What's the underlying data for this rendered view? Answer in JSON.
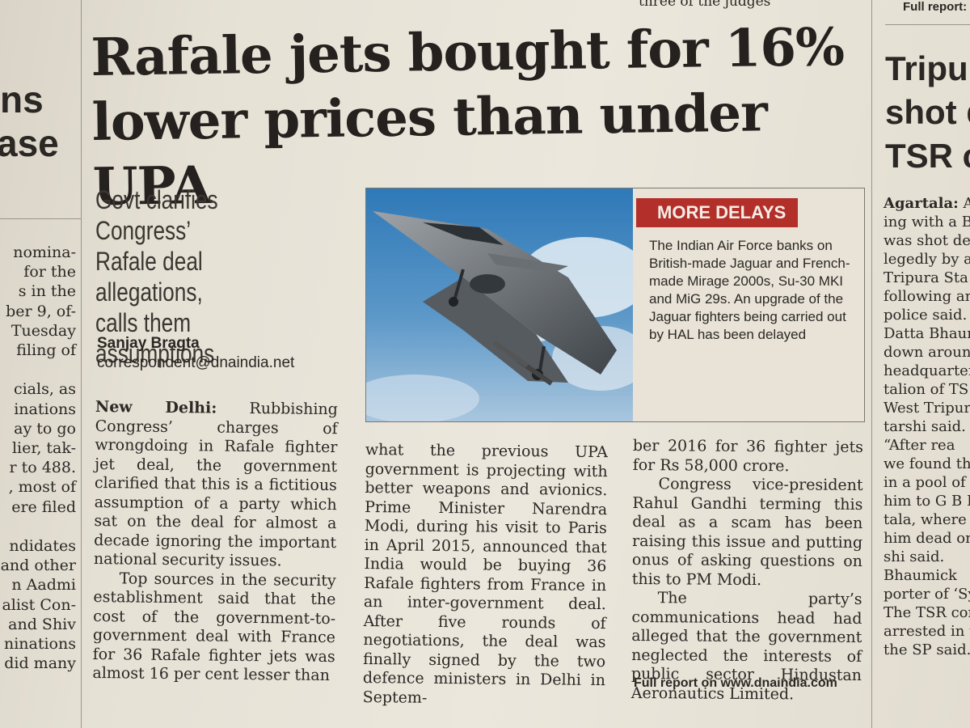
{
  "headline": {
    "line1": "Rafale jets bought for 16%",
    "line2": "lower prices than under UPA"
  },
  "deck": {
    "line1": "Govt clarifies Congress’",
    "line2": "Rafale deal allegations,",
    "line3": "calls them assumptions"
  },
  "byline": {
    "name": "Sanjay Bragta",
    "email": "correspondent@dnaindia.net"
  },
  "story": {
    "dateline": "New Delhi:",
    "p1": " Rubbishing Congress’ charges of wrongdoing in Rafale fighter jet deal, the government clarified that this is a fictitious assumption of a party which sat on the deal for almost a decade ignoring the important national security issues.",
    "p2": "Top sources in the security establishment said that the cost of the government-to-government deal with France for 36 Rafale fighter jets was almost 16 per cent lesser than",
    "p3": "what the previous UPA government is projecting with better weapons and avionics. Prime Minister Narendra Modi, during his visit to Paris in April 2015, announced that India would be buying 36 Rafale fighters from France in an inter-government deal. After five rounds of negotiations, the deal was finally signed by the two defence ministers in Delhi in Septem-",
    "p4": "ber 2016 for 36 fighter jets for Rs 58,000 crore.",
    "p5": "Congress vice-president Rahul Gandhi terming this deal as a scam has been raising this issue and putting onus of asking questions on this to PM Modi.",
    "p6": "The party’s communications head had alleged that the government neglected the interests of public sector Hindustan Aeronautics Limited.",
    "full_report": "Full report on www.dnaindia.com"
  },
  "sidebar": {
    "title": "MORE DELAYS",
    "text": "The Indian Air Force banks on British-made Jaguar and French-made Mirage 2000s, Su-30 MKI and MiG 29s. An upgrade of the Jaguar fighters being carried out by HAL has been delayed"
  },
  "left_fragment": {
    "head1": "ns",
    "head2": "ase",
    "lines": [
      "nomina-",
      "for the",
      "s in the",
      "ber 9, of-",
      "Tuesday",
      "filing of",
      "",
      "cials, as",
      "inations",
      "ay to go",
      "lier, tak-",
      "r to 488.",
      ", most of",
      "ere filed",
      "",
      "ndidates",
      "and other",
      "n Aadmi",
      "alist Con-",
      "and Shiv",
      "ninations",
      "did many"
    ]
  },
  "right_fragment": {
    "top": "Full report:",
    "head1": "Tripura",
    "head2": "shot de",
    "head3": "TSR co",
    "lines": [
      "Agartala: A",
      "ing with a Be",
      "was shot dea",
      "legedly by a",
      "Tripura Sta",
      "following an",
      "police said. T",
      "Datta Bhaum",
      "down around",
      "headquarter",
      "talion of TS",
      "West Tripura",
      "tarshi said.",
      "“After rea",
      "we found the",
      "in a pool of",
      "him to G B H",
      "tala, where d",
      "him dead on",
      "shi said.",
      "Bhaumick",
      "porter of ‘Sy",
      "The TSR com",
      "arrested in t",
      "the SP said. -"
    ]
  },
  "top_strip": "three of the judges",
  "colors": {
    "paper": "#e6e1d5",
    "ink": "#2a2724",
    "sidebar_red": "#b32f2a",
    "sidebar_bg": "#e8e3d6"
  }
}
